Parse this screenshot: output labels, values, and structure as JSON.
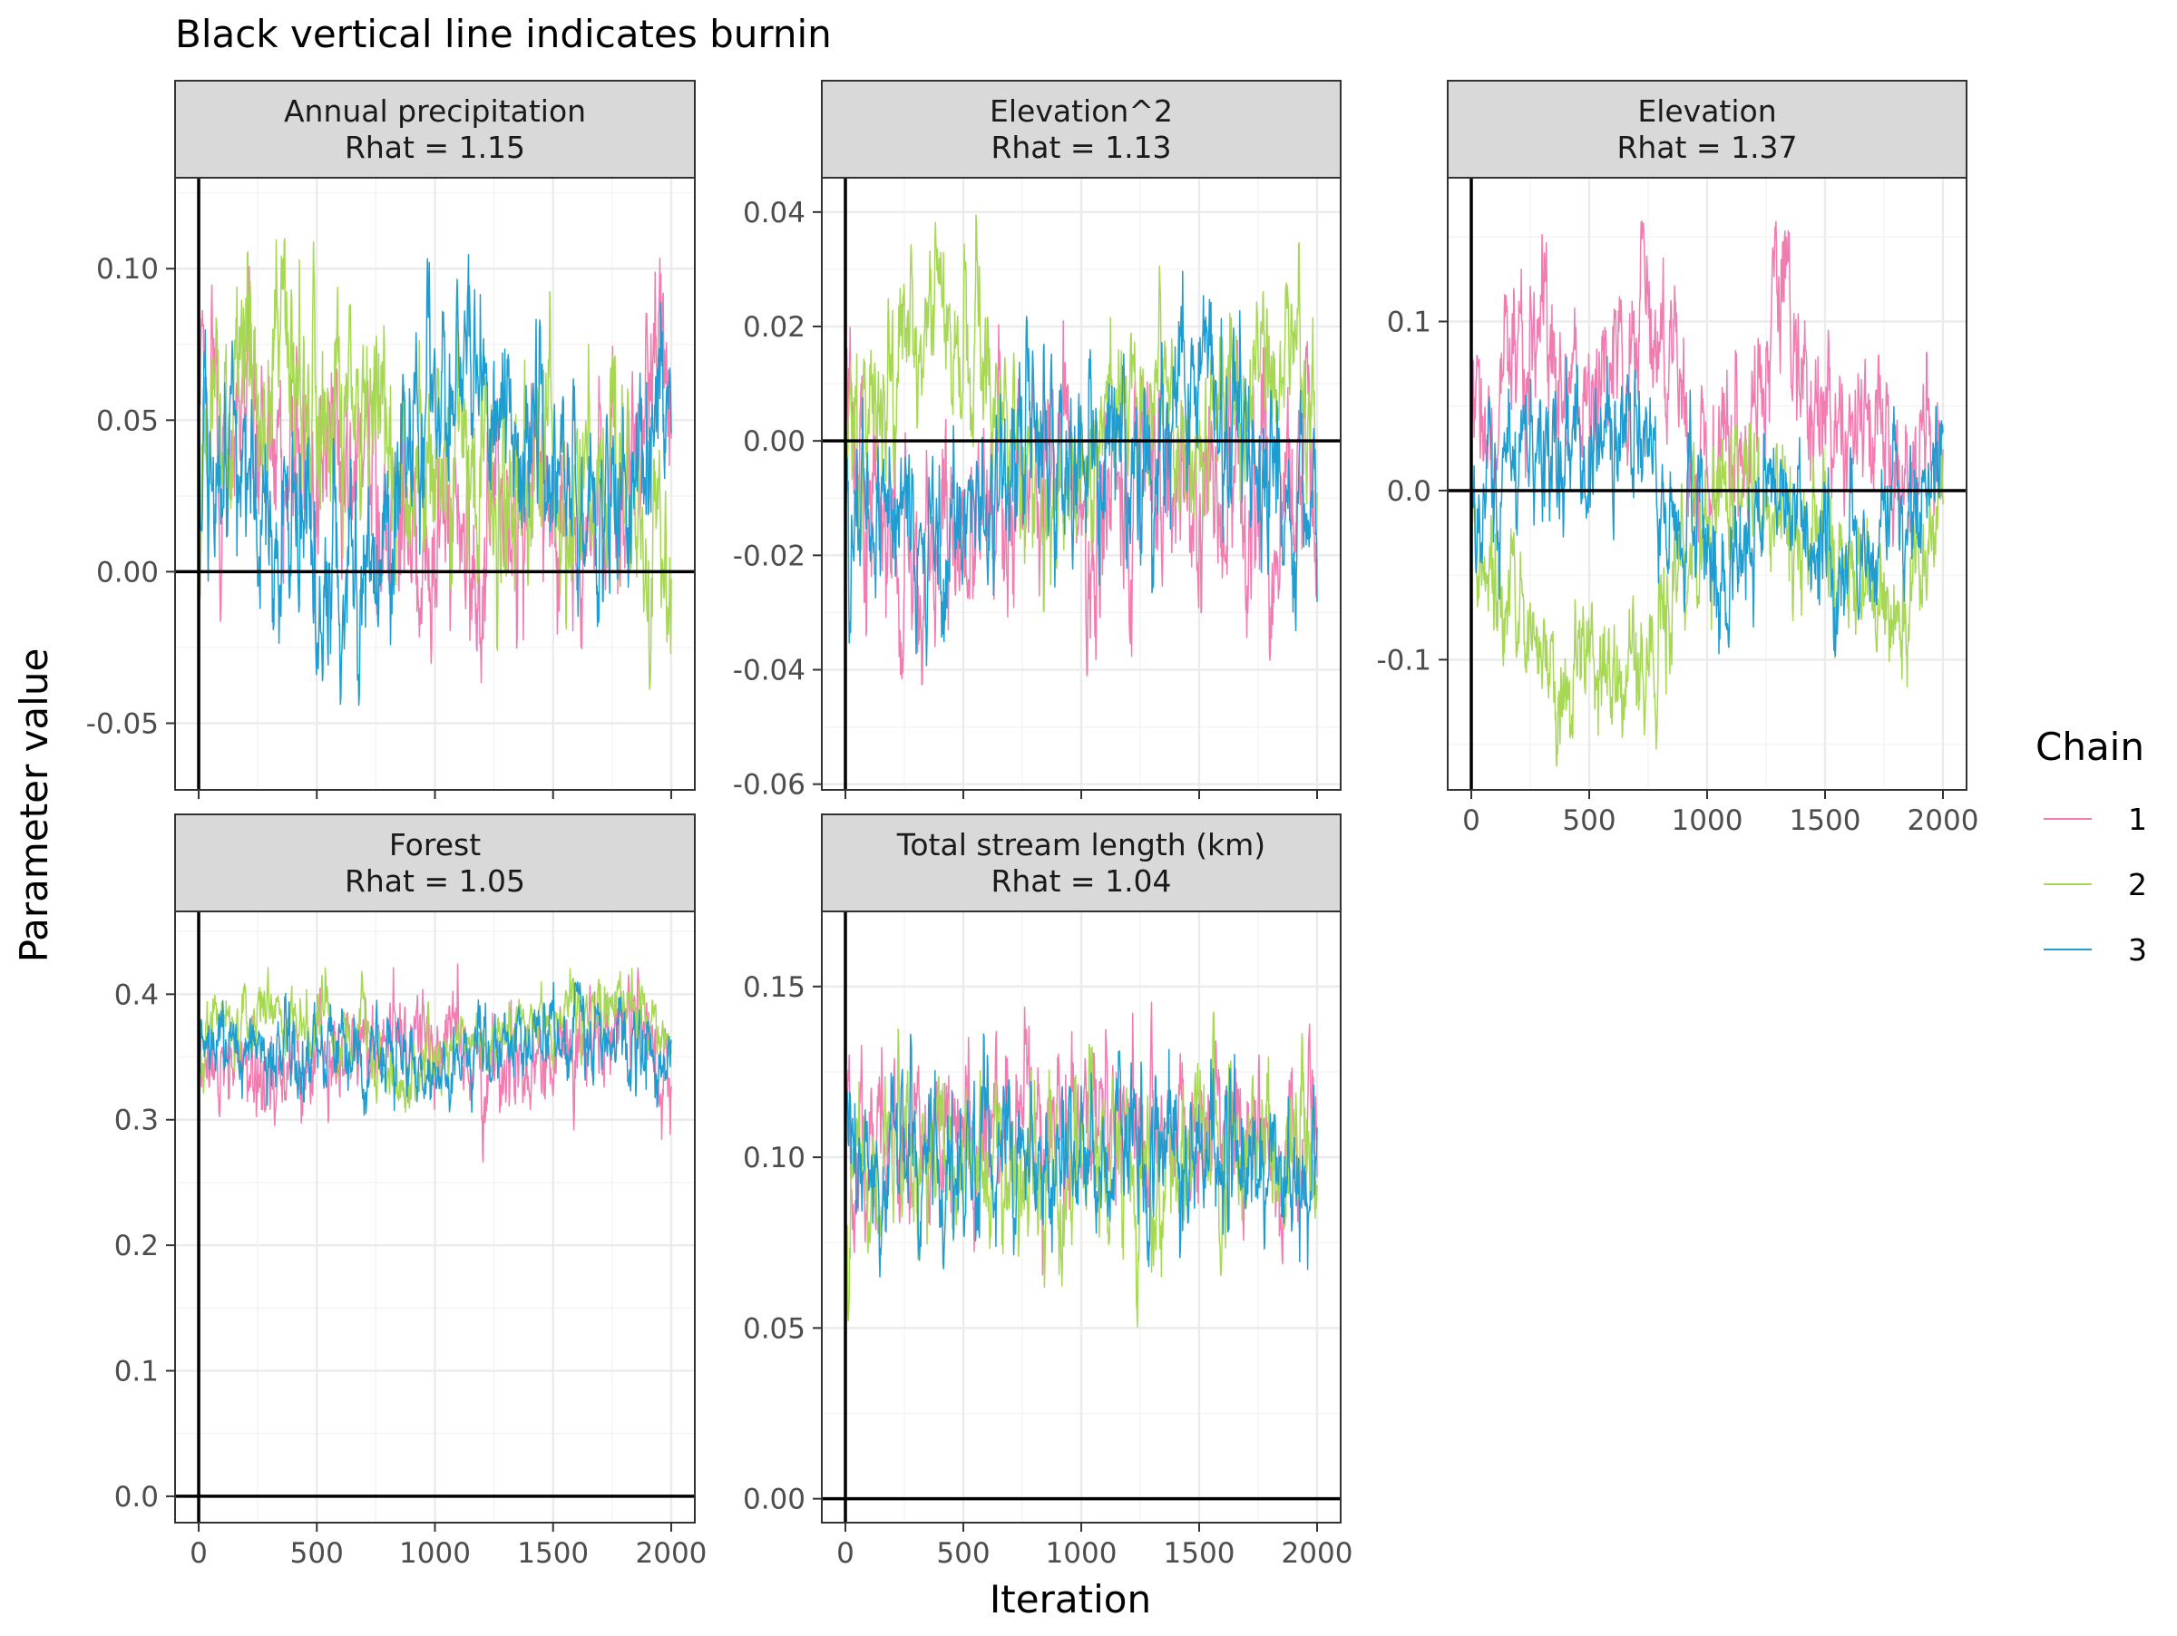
{
  "chart_data": {
    "type": "line",
    "title": "Black vertical line indicates burnin",
    "xlabel": "Iteration",
    "ylabel": "Parameter value",
    "legend": {
      "title": "Chain",
      "placement": "right",
      "entries": [
        {
          "label": "1",
          "color": "#f17cb0"
        },
        {
          "label": "2",
          "color": "#a6d854"
        },
        {
          "label": "3",
          "color": "#1f9dd0"
        }
      ]
    },
    "grid": true,
    "burnin": 0,
    "reference_line_y": 0,
    "facets": [
      {
        "strip": "Annual precipitation",
        "rhat": "Rhat = 1.15",
        "xlim": [
          -100,
          2100
        ],
        "ylim": [
          -0.072,
          0.13
        ],
        "x_ticks": [
          0,
          500,
          1000,
          1500,
          2000
        ],
        "y_ticks": [
          -0.05,
          0.0,
          0.05,
          0.1
        ],
        "y_tick_labels": [
          "-0.05",
          "0.00",
          "0.05",
          "0.10"
        ],
        "series": [
          {
            "name": "1",
            "x_range": [
              0,
              2000
            ],
            "y_range": [
              -0.063,
              0.105
            ],
            "anchors": [
              [
                0,
                0.05
              ],
              [
                300,
                0.04
              ],
              [
                600,
                0.045
              ],
              [
                900,
                0.015
              ],
              [
                1200,
                0.0
              ],
              [
                1400,
                0.03
              ],
              [
                1700,
                0.01
              ],
              [
                2000,
                0.06
              ]
            ]
          },
          {
            "name": "2",
            "x_range": [
              0,
              2000
            ],
            "y_range": [
              -0.053,
              0.12
            ],
            "anchors": [
              [
                0,
                0.03
              ],
              [
                200,
                0.075
              ],
              [
                400,
                0.06
              ],
              [
                700,
                0.04
              ],
              [
                1000,
                0.03
              ],
              [
                1300,
                0.03
              ],
              [
                1600,
                0.02
              ],
              [
                1800,
                0.03
              ],
              [
                2000,
                -0.01
              ]
            ]
          },
          {
            "name": "3",
            "x_range": [
              0,
              2000
            ],
            "y_range": [
              -0.049,
              0.11
            ],
            "anchors": [
              [
                0,
                0.035
              ],
              [
                300,
                0.02
              ],
              [
                600,
                0.0
              ],
              [
                900,
                0.04
              ],
              [
                1100,
                0.07
              ],
              [
                1300,
                0.06
              ],
              [
                1500,
                0.035
              ],
              [
                1700,
                0.02
              ],
              [
                2000,
                0.055
              ]
            ]
          }
        ]
      },
      {
        "strip": "Elevation^2",
        "rhat": "Rhat = 1.13",
        "xlim": [
          -100,
          2100
        ],
        "ylim": [
          -0.061,
          0.046
        ],
        "x_ticks": [
          0,
          500,
          1000,
          1500,
          2000
        ],
        "y_ticks": [
          -0.06,
          -0.04,
          -0.02,
          0.0,
          0.02,
          0.04
        ],
        "y_tick_labels": [
          "-0.06",
          "-0.04",
          "-0.02",
          "0.00",
          "0.02",
          "0.04"
        ],
        "series": [
          {
            "name": "1",
            "x_range": [
              0,
              2000
            ],
            "y_range": [
              -0.058,
              0.033
            ],
            "anchors": [
              [
                0,
                0.0
              ],
              [
                300,
                -0.025
              ],
              [
                600,
                -0.01
              ],
              [
                900,
                0.005
              ],
              [
                1100,
                -0.02
              ],
              [
                1300,
                0.0
              ],
              [
                1500,
                -0.01
              ],
              [
                1800,
                -0.015
              ],
              [
                2000,
                -0.01
              ]
            ]
          },
          {
            "name": "2",
            "x_range": [
              0,
              2000
            ],
            "y_range": [
              -0.03,
              0.042
            ],
            "anchors": [
              [
                0,
                0.0
              ],
              [
                300,
                0.02
              ],
              [
                600,
                0.01
              ],
              [
                900,
                -0.005
              ],
              [
                1200,
                0.01
              ],
              [
                1500,
                0.0
              ],
              [
                1800,
                0.015
              ],
              [
                2000,
                0.0
              ]
            ]
          },
          {
            "name": "3",
            "x_range": [
              0,
              2000
            ],
            "y_range": [
              -0.05,
              0.03
            ],
            "anchors": [
              [
                0,
                -0.01
              ],
              [
                300,
                -0.015
              ],
              [
                600,
                -0.01
              ],
              [
                900,
                0.0
              ],
              [
                1200,
                -0.005
              ],
              [
                1500,
                0.01
              ],
              [
                1800,
                -0.005
              ],
              [
                2000,
                -0.01
              ]
            ]
          }
        ]
      },
      {
        "strip": "Elevation",
        "rhat": "Rhat = 1.37",
        "xlim": [
          -100,
          2100
        ],
        "ylim": [
          -0.177,
          0.185
        ],
        "x_ticks": [
          0,
          500,
          1000,
          1500,
          2000
        ],
        "x_tick_labels": [
          "0",
          "500",
          "1000",
          "1500",
          "2000"
        ],
        "y_ticks": [
          -0.1,
          0.0,
          0.1
        ],
        "y_tick_labels": [
          "-0.1",
          "0.0",
          "0.1"
        ],
        "series": [
          {
            "name": "1",
            "x_range": [
              0,
              2000
            ],
            "y_range": [
              -0.07,
              0.16
            ],
            "anchors": [
              [
                0,
                0.04
              ],
              [
                300,
                0.09
              ],
              [
                500,
                0.04
              ],
              [
                750,
                0.1
              ],
              [
                1000,
                0.0
              ],
              [
                1200,
                0.04
              ],
              [
                1320,
                0.13
              ],
              [
                1500,
                0.03
              ],
              [
                1700,
                0.05
              ],
              [
                2000,
                0.01
              ]
            ]
          },
          {
            "name": "2",
            "x_range": [
              0,
              2000
            ],
            "y_range": [
              -0.165,
              0.04
            ],
            "anchors": [
              [
                0,
                -0.04
              ],
              [
                300,
                -0.1
              ],
              [
                550,
                -0.12
              ],
              [
                800,
                -0.08
              ],
              [
                1000,
                -0.01
              ],
              [
                1200,
                0.0
              ],
              [
                1500,
                -0.02
              ],
              [
                1800,
                -0.08
              ],
              [
                2000,
                -0.02
              ]
            ]
          },
          {
            "name": "3",
            "x_range": [
              0,
              2000
            ],
            "y_range": [
              -0.12,
              0.08
            ],
            "anchors": [
              [
                0,
                0.0
              ],
              [
                300,
                0.03
              ],
              [
                500,
                0.02
              ],
              [
                700,
                0.03
              ],
              [
                900,
                -0.02
              ],
              [
                1100,
                -0.04
              ],
              [
                1300,
                0.01
              ],
              [
                1500,
                -0.03
              ],
              [
                1800,
                -0.02
              ],
              [
                2000,
                0.02
              ]
            ]
          }
        ]
      },
      {
        "strip": "Forest",
        "rhat": "Rhat = 1.05",
        "xlim": [
          -100,
          2100
        ],
        "ylim": [
          -0.021,
          0.466
        ],
        "x_ticks": [
          0,
          500,
          1000,
          1500,
          2000
        ],
        "x_tick_labels": [
          "0",
          "500",
          "1000",
          "1500",
          "2000"
        ],
        "y_ticks": [
          0.0,
          0.1,
          0.2,
          0.3,
          0.4
        ],
        "y_tick_labels": [
          "0.0",
          "0.1",
          "0.2",
          "0.3",
          "0.4"
        ],
        "series": [
          {
            "name": "1",
            "x_range": [
              0,
              2000
            ],
            "y_range": [
              0.24,
              0.43
            ],
            "anchors": [
              [
                0,
                0.36
              ],
              [
                300,
                0.33
              ],
              [
                600,
                0.35
              ],
              [
                900,
                0.37
              ],
              [
                1200,
                0.34
              ],
              [
                1500,
                0.35
              ],
              [
                1800,
                0.38
              ],
              [
                2000,
                0.35
              ]
            ]
          },
          {
            "name": "2",
            "x_range": [
              0,
              2000
            ],
            "y_range": [
              0.3,
              0.44
            ],
            "anchors": [
              [
                0,
                0.37
              ],
              [
                300,
                0.38
              ],
              [
                600,
                0.37
              ],
              [
                900,
                0.33
              ],
              [
                1200,
                0.36
              ],
              [
                1500,
                0.38
              ],
              [
                1800,
                0.4
              ],
              [
                2000,
                0.37
              ]
            ]
          },
          {
            "name": "3",
            "x_range": [
              0,
              2000
            ],
            "y_range": [
              0.255,
              0.41
            ],
            "anchors": [
              [
                0,
                0.35
              ],
              [
                300,
                0.35
              ],
              [
                600,
                0.36
              ],
              [
                900,
                0.34
              ],
              [
                1200,
                0.35
              ],
              [
                1500,
                0.37
              ],
              [
                1800,
                0.36
              ],
              [
                2000,
                0.34
              ]
            ]
          }
        ]
      },
      {
        "strip": "Total stream length (km)",
        "rhat": "Rhat = 1.04",
        "xlim": [
          -100,
          2100
        ],
        "ylim": [
          -0.007,
          0.172
        ],
        "x_ticks": [
          0,
          500,
          1000,
          1500,
          2000
        ],
        "x_tick_labels": [
          "0",
          "500",
          "1000",
          "1500",
          "2000"
        ],
        "y_ticks": [
          0.0,
          0.05,
          0.1,
          0.15
        ],
        "y_tick_labels": [
          "0.00",
          "0.05",
          "0.10",
          "0.15"
        ],
        "series": [
          {
            "name": "1",
            "x_range": [
              0,
              2000
            ],
            "y_range": [
              0.05,
              0.163
            ],
            "anchors": [
              [
                0,
                0.105
              ],
              [
                500,
                0.11
              ],
              [
                1000,
                0.11
              ],
              [
                1500,
                0.105
              ],
              [
                2000,
                0.105
              ]
            ]
          },
          {
            "name": "2",
            "x_range": [
              0,
              2000
            ],
            "y_range": [
              0.05,
              0.163
            ],
            "anchors": [
              [
                0,
                0.1
              ],
              [
                500,
                0.1
              ],
              [
                1000,
                0.1
              ],
              [
                1500,
                0.1
              ],
              [
                2000,
                0.1
              ]
            ]
          },
          {
            "name": "3",
            "x_range": [
              0,
              2000
            ],
            "y_range": [
              0.049,
              0.157
            ],
            "anchors": [
              [
                0,
                0.1
              ],
              [
                500,
                0.1
              ],
              [
                1000,
                0.1
              ],
              [
                1500,
                0.1
              ],
              [
                2000,
                0.1
              ]
            ]
          }
        ]
      }
    ]
  }
}
